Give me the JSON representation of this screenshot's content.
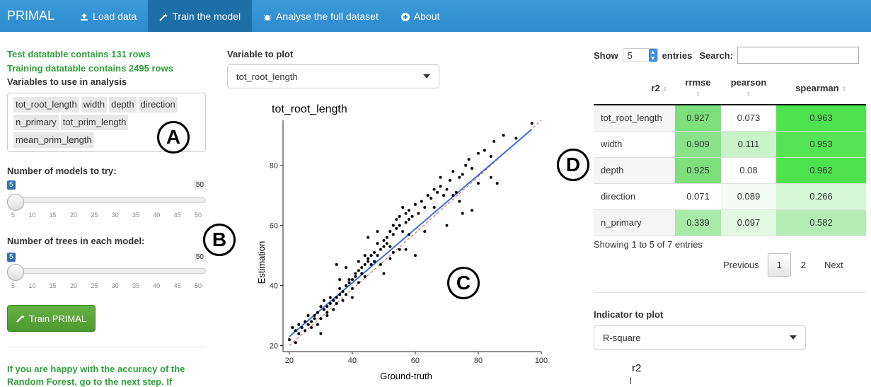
{
  "nav": {
    "brand": "PRIMAL",
    "items": [
      {
        "label": "Load data",
        "icon": "upload-icon"
      },
      {
        "label": "Train the model",
        "icon": "wand-icon"
      },
      {
        "label": "Analyse the full dataset",
        "icon": "bug-icon"
      },
      {
        "label": "About",
        "icon": "plus-circle-icon"
      }
    ]
  },
  "left": {
    "test_rows": "Test datatable contains 131 rows",
    "train_rows": "Training datatable contains 2495 rows",
    "vars_label": "Variables to use in analysis",
    "variables": [
      "tot_root_length",
      "width",
      "depth",
      "direction",
      "n_primary",
      "tot_prim_length",
      "mean_prim_length"
    ],
    "models_label": "Number of models to try:",
    "models_value": "5",
    "models_max": "50",
    "trees_label": "Number of trees in each model:",
    "trees_value": "5",
    "trees_max": "50",
    "ticks": [
      "5",
      "10",
      "15",
      "20",
      "25",
      "30",
      "35",
      "40",
      "45",
      "50"
    ],
    "train_button": "Train PRIMAL",
    "happy_text_1": "If you are happy with the accuracy of the",
    "happy_text_2": "Random Forest, go to the next step. If"
  },
  "annotations": {
    "a": "A",
    "b": "B",
    "c": "C",
    "d": "D"
  },
  "middle": {
    "var_label": "Variable to plot",
    "var_value": "tot_root_length"
  },
  "chart_data": {
    "type": "scatter",
    "title": "tot_root_length",
    "xlabel": "Ground-truth",
    "ylabel": "Estimation",
    "xlim": [
      18,
      100
    ],
    "ylim": [
      18,
      95
    ],
    "xticks": [
      20,
      40,
      60,
      80,
      100
    ],
    "yticks": [
      20,
      40,
      60,
      80
    ],
    "points": [
      [
        20,
        22
      ],
      [
        21,
        26
      ],
      [
        22,
        25
      ],
      [
        22,
        21
      ],
      [
        23,
        24
      ],
      [
        23,
        27
      ],
      [
        24,
        26
      ],
      [
        25,
        28
      ],
      [
        26,
        30
      ],
      [
        26,
        27
      ],
      [
        27,
        28
      ],
      [
        27,
        26
      ],
      [
        28,
        30
      ],
      [
        28,
        29
      ],
      [
        29,
        27
      ],
      [
        29,
        31
      ],
      [
        30,
        33
      ],
      [
        30,
        29
      ],
      [
        31,
        32
      ],
      [
        31,
        35
      ],
      [
        32,
        33
      ],
      [
        32,
        31
      ],
      [
        33,
        34
      ],
      [
        33,
        36
      ],
      [
        34,
        32
      ],
      [
        34,
        35
      ],
      [
        35,
        36
      ],
      [
        35,
        34
      ],
      [
        36,
        37
      ],
      [
        36,
        39
      ],
      [
        37,
        38
      ],
      [
        37,
        35
      ],
      [
        38,
        40
      ],
      [
        38,
        37
      ],
      [
        39,
        41
      ],
      [
        39,
        42
      ],
      [
        40,
        42
      ],
      [
        40,
        39
      ],
      [
        41,
        43
      ],
      [
        41,
        44
      ],
      [
        42,
        45
      ],
      [
        42,
        41
      ],
      [
        43,
        46
      ],
      [
        43,
        44
      ],
      [
        44,
        47
      ],
      [
        44,
        43
      ],
      [
        45,
        48
      ],
      [
        45,
        49
      ],
      [
        46,
        50
      ],
      [
        46,
        47
      ],
      [
        47,
        51
      ],
      [
        47,
        48
      ],
      [
        48,
        54
      ],
      [
        48,
        50
      ],
      [
        49,
        52
      ],
      [
        49,
        47
      ],
      [
        50,
        53
      ],
      [
        50,
        55
      ],
      [
        51,
        56
      ],
      [
        51,
        54
      ],
      [
        52,
        58
      ],
      [
        52,
        53
      ],
      [
        53,
        60
      ],
      [
        53,
        57
      ],
      [
        54,
        59
      ],
      [
        54,
        62
      ],
      [
        55,
        60
      ],
      [
        55,
        63
      ],
      [
        56,
        66
      ],
      [
        56,
        58
      ],
      [
        57,
        61
      ],
      [
        57,
        64
      ],
      [
        58,
        62
      ],
      [
        58,
        65
      ],
      [
        59,
        63
      ],
      [
        60,
        67
      ],
      [
        61,
        64
      ],
      [
        62,
        68
      ],
      [
        63,
        66
      ],
      [
        64,
        70
      ],
      [
        65,
        69
      ],
      [
        66,
        72
      ],
      [
        67,
        71
      ],
      [
        68,
        73
      ],
      [
        69,
        70
      ],
      [
        70,
        72
      ],
      [
        71,
        75
      ],
      [
        72,
        78
      ],
      [
        73,
        71
      ],
      [
        74,
        76
      ],
      [
        75,
        77
      ],
      [
        76,
        80
      ],
      [
        77,
        82
      ],
      [
        78,
        79
      ],
      [
        80,
        84
      ],
      [
        82,
        85
      ],
      [
        84,
        83
      ],
      [
        85,
        88
      ],
      [
        88,
        90
      ],
      [
        92,
        89
      ],
      [
        97,
        94
      ],
      [
        75,
        64
      ],
      [
        70,
        60
      ],
      [
        60,
        50
      ],
      [
        55,
        52
      ],
      [
        45,
        56
      ],
      [
        35,
        47
      ],
      [
        40,
        36
      ],
      [
        30,
        24
      ],
      [
        25,
        25
      ],
      [
        52,
        49
      ],
      [
        63,
        58
      ],
      [
        58,
        57
      ],
      [
        48,
        58
      ],
      [
        44,
        50
      ],
      [
        38,
        46
      ],
      [
        50,
        44
      ],
      [
        66,
        66
      ],
      [
        72,
        70
      ],
      [
        80,
        74
      ],
      [
        84,
        76
      ],
      [
        86,
        74
      ],
      [
        68,
        76
      ],
      [
        74,
        68
      ],
      [
        78,
        65
      ],
      [
        53,
        51
      ],
      [
        57,
        52
      ],
      [
        42,
        48
      ],
      [
        36,
        42
      ],
      [
        32,
        30
      ]
    ],
    "fit_line": [
      [
        20,
        23
      ],
      [
        97,
        92
      ]
    ],
    "identity_line": [
      [
        20,
        20
      ],
      [
        100,
        100
      ]
    ]
  },
  "right": {
    "show": "Show",
    "entries_value": "5",
    "entries": "entries",
    "search": "Search:",
    "columns": [
      "r2",
      "rrmse",
      "pearson",
      "spearman"
    ],
    "rows": [
      {
        "name": "tot_root_length",
        "r2": "0.927",
        "rrmse": "0.073",
        "pearson": "0.963",
        "c": [
          "#7de07d",
          "#ffffff",
          "#4ee34e"
        ]
      },
      {
        "name": "width",
        "r2": "0.909",
        "rrmse": "0.111",
        "pearson": "0.953",
        "c": [
          "#8ae28a",
          "#c9f4c9",
          "#55e455"
        ]
      },
      {
        "name": "depth",
        "r2": "0.925",
        "rrmse": "0.08",
        "pearson": "0.962",
        "c": [
          "#7de07d",
          "#ffffff",
          "#4ee34e"
        ]
      },
      {
        "name": "direction",
        "r2": "0.071",
        "rrmse": "0.089",
        "pearson": "0.266",
        "c": [
          "#ffffff",
          "#f3fdf3",
          "#d6f7d6"
        ]
      },
      {
        "name": "n_primary",
        "r2": "0.339",
        "rrmse": "0.097",
        "pearson": "0.582",
        "c": [
          "#a8eaa8",
          "#e2f9e2",
          "#b3edb3"
        ]
      }
    ],
    "info": "Showing 1 to 5 of 7 entries",
    "previous": "Previous",
    "page1": "1",
    "page2": "2",
    "next": "Next",
    "indicator_label": "Indicator to plot",
    "indicator_value": "R-square",
    "mini_title": "r2"
  }
}
